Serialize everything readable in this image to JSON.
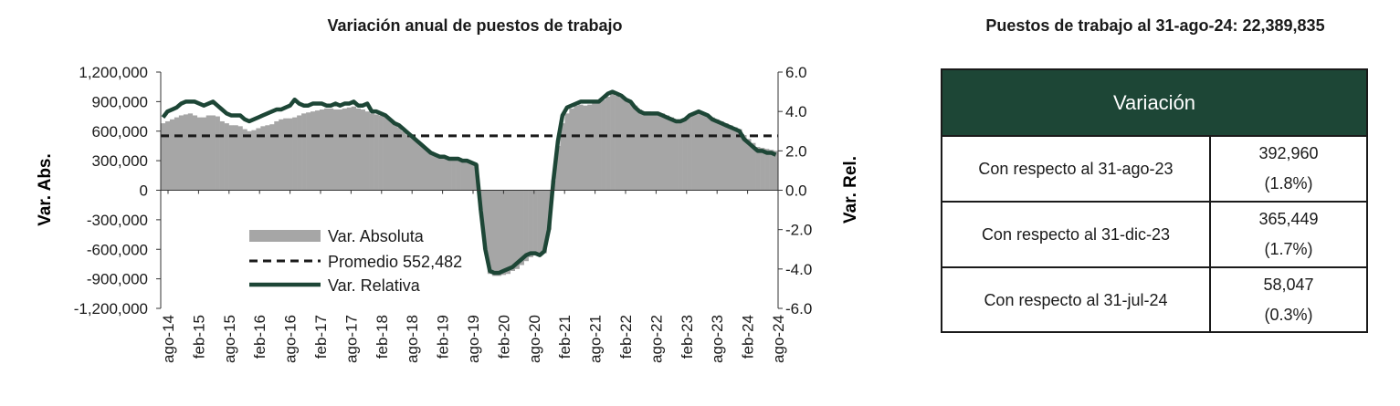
{
  "chart_title": "Variación anual de puestos de trabajo",
  "table_title": "Puestos de trabajo al 31-ago-24: 22,389,835",
  "table": {
    "header": "Variación",
    "rows": [
      {
        "label": "Con respecto al 31-ago-23",
        "value": "392,960",
        "pct": "(1.8%)"
      },
      {
        "label": "Con respecto al 31-dic-23",
        "value": "365,449",
        "pct": "(1.7%)"
      },
      {
        "label": "Con respecto al 31-jul-24",
        "value": "58,047",
        "pct": "(0.3%)"
      }
    ]
  },
  "colors": {
    "bars": "#a6a6a6",
    "relative_line": "#1d4636",
    "average_line": "#1a1a1a",
    "header_bg": "#1d4636"
  },
  "chart_data": {
    "type": "bar",
    "title": "Variación anual de puestos de trabajo",
    "ylabel": "Var. Abs.",
    "y2label": "Var. Rel.",
    "ylim": [
      -1200000,
      1200000
    ],
    "y2lim": [
      -6,
      6
    ],
    "yticks": [
      "1,200,000",
      "900,000",
      "600,000",
      "300,000",
      "0",
      "-300,000",
      "-600,000",
      "-900,000",
      "-1,200,000"
    ],
    "y2ticks": [
      "6.0",
      "4.0",
      "2.0",
      "0.0",
      "-2.0",
      "-4.0",
      "-6.0"
    ],
    "xticks": [
      "ago-14",
      "feb-15",
      "ago-15",
      "feb-16",
      "ago-16",
      "feb-17",
      "ago-17",
      "feb-18",
      "ago-18",
      "feb-19",
      "ago-19",
      "feb-20",
      "ago-20",
      "feb-21",
      "ago-21",
      "feb-22",
      "ago-22",
      "feb-23",
      "ago-23",
      "feb-24",
      "ago-24"
    ],
    "legend": [
      "Var. Absoluta",
      "Promedio 552,482",
      "Var. Relativa"
    ],
    "legend_position": "lower-left",
    "average": 552482,
    "series": [
      {
        "name": "Var. Absoluta",
        "type": "bar",
        "values": [
          680000,
          700000,
          720000,
          740000,
          760000,
          770000,
          780000,
          760000,
          740000,
          740000,
          760000,
          760000,
          750000,
          700000,
          680000,
          660000,
          660000,
          650000,
          620000,
          600000,
          610000,
          630000,
          650000,
          660000,
          670000,
          700000,
          720000,
          730000,
          730000,
          740000,
          760000,
          780000,
          790000,
          800000,
          810000,
          820000,
          830000,
          830000,
          820000,
          820000,
          830000,
          840000,
          850000,
          830000,
          820000,
          800000,
          780000,
          770000,
          760000,
          750000,
          720000,
          680000,
          640000,
          600000,
          560000,
          530000,
          500000,
          460000,
          420000,
          390000,
          360000,
          350000,
          340000,
          330000,
          320000,
          320000,
          300000,
          290000,
          280000,
          260000,
          -200000,
          -600000,
          -850000,
          -870000,
          -870000,
          -860000,
          -850000,
          -820000,
          -800000,
          -760000,
          -720000,
          -680000,
          -660000,
          -650000,
          -640000,
          -400000,
          100000,
          450000,
          680000,
          780000,
          830000,
          860000,
          870000,
          860000,
          870000,
          880000,
          890000,
          920000,
          950000,
          980000,
          960000,
          940000,
          920000,
          900000,
          860000,
          820000,
          800000,
          800000,
          790000,
          790000,
          780000,
          760000,
          740000,
          720000,
          720000,
          730000,
          760000,
          790000,
          800000,
          780000,
          760000,
          740000,
          720000,
          700000,
          680000,
          660000,
          640000,
          620000,
          560000,
          520000,
          480000,
          440000,
          430000,
          420000,
          410000,
          400000
        ]
      },
      {
        "name": "Var. Relativa",
        "type": "line",
        "values": [
          3.7,
          4.0,
          4.1,
          4.2,
          4.4,
          4.5,
          4.5,
          4.5,
          4.4,
          4.3,
          4.4,
          4.5,
          4.3,
          4.1,
          3.9,
          3.8,
          3.8,
          3.8,
          3.6,
          3.5,
          3.6,
          3.7,
          3.8,
          3.9,
          4.0,
          4.1,
          4.1,
          4.2,
          4.3,
          4.6,
          4.4,
          4.3,
          4.3,
          4.4,
          4.4,
          4.4,
          4.3,
          4.3,
          4.4,
          4.3,
          4.4,
          4.4,
          4.5,
          4.3,
          4.3,
          4.4,
          4.0,
          4.0,
          3.9,
          3.8,
          3.6,
          3.4,
          3.3,
          3.1,
          2.9,
          2.7,
          2.5,
          2.3,
          2.1,
          1.9,
          1.8,
          1.7,
          1.7,
          1.6,
          1.6,
          1.6,
          1.5,
          1.5,
          1.4,
          1.3,
          -1.0,
          -3.0,
          -4.1,
          -4.2,
          -4.2,
          -4.1,
          -4.0,
          -3.9,
          -3.7,
          -3.5,
          -3.3,
          -3.2,
          -3.2,
          -3.3,
          -3.1,
          -2.0,
          0.5,
          2.5,
          3.8,
          4.2,
          4.3,
          4.4,
          4.5,
          4.5,
          4.5,
          4.5,
          4.5,
          4.7,
          4.9,
          5.0,
          4.9,
          4.8,
          4.6,
          4.5,
          4.2,
          4.0,
          3.9,
          3.9,
          3.9,
          3.9,
          3.8,
          3.7,
          3.6,
          3.5,
          3.5,
          3.6,
          3.8,
          3.9,
          4.0,
          3.9,
          3.8,
          3.6,
          3.5,
          3.4,
          3.3,
          3.2,
          3.1,
          3.0,
          2.6,
          2.4,
          2.2,
          2.0,
          2.0,
          1.9,
          1.9,
          1.8
        ]
      }
    ]
  }
}
